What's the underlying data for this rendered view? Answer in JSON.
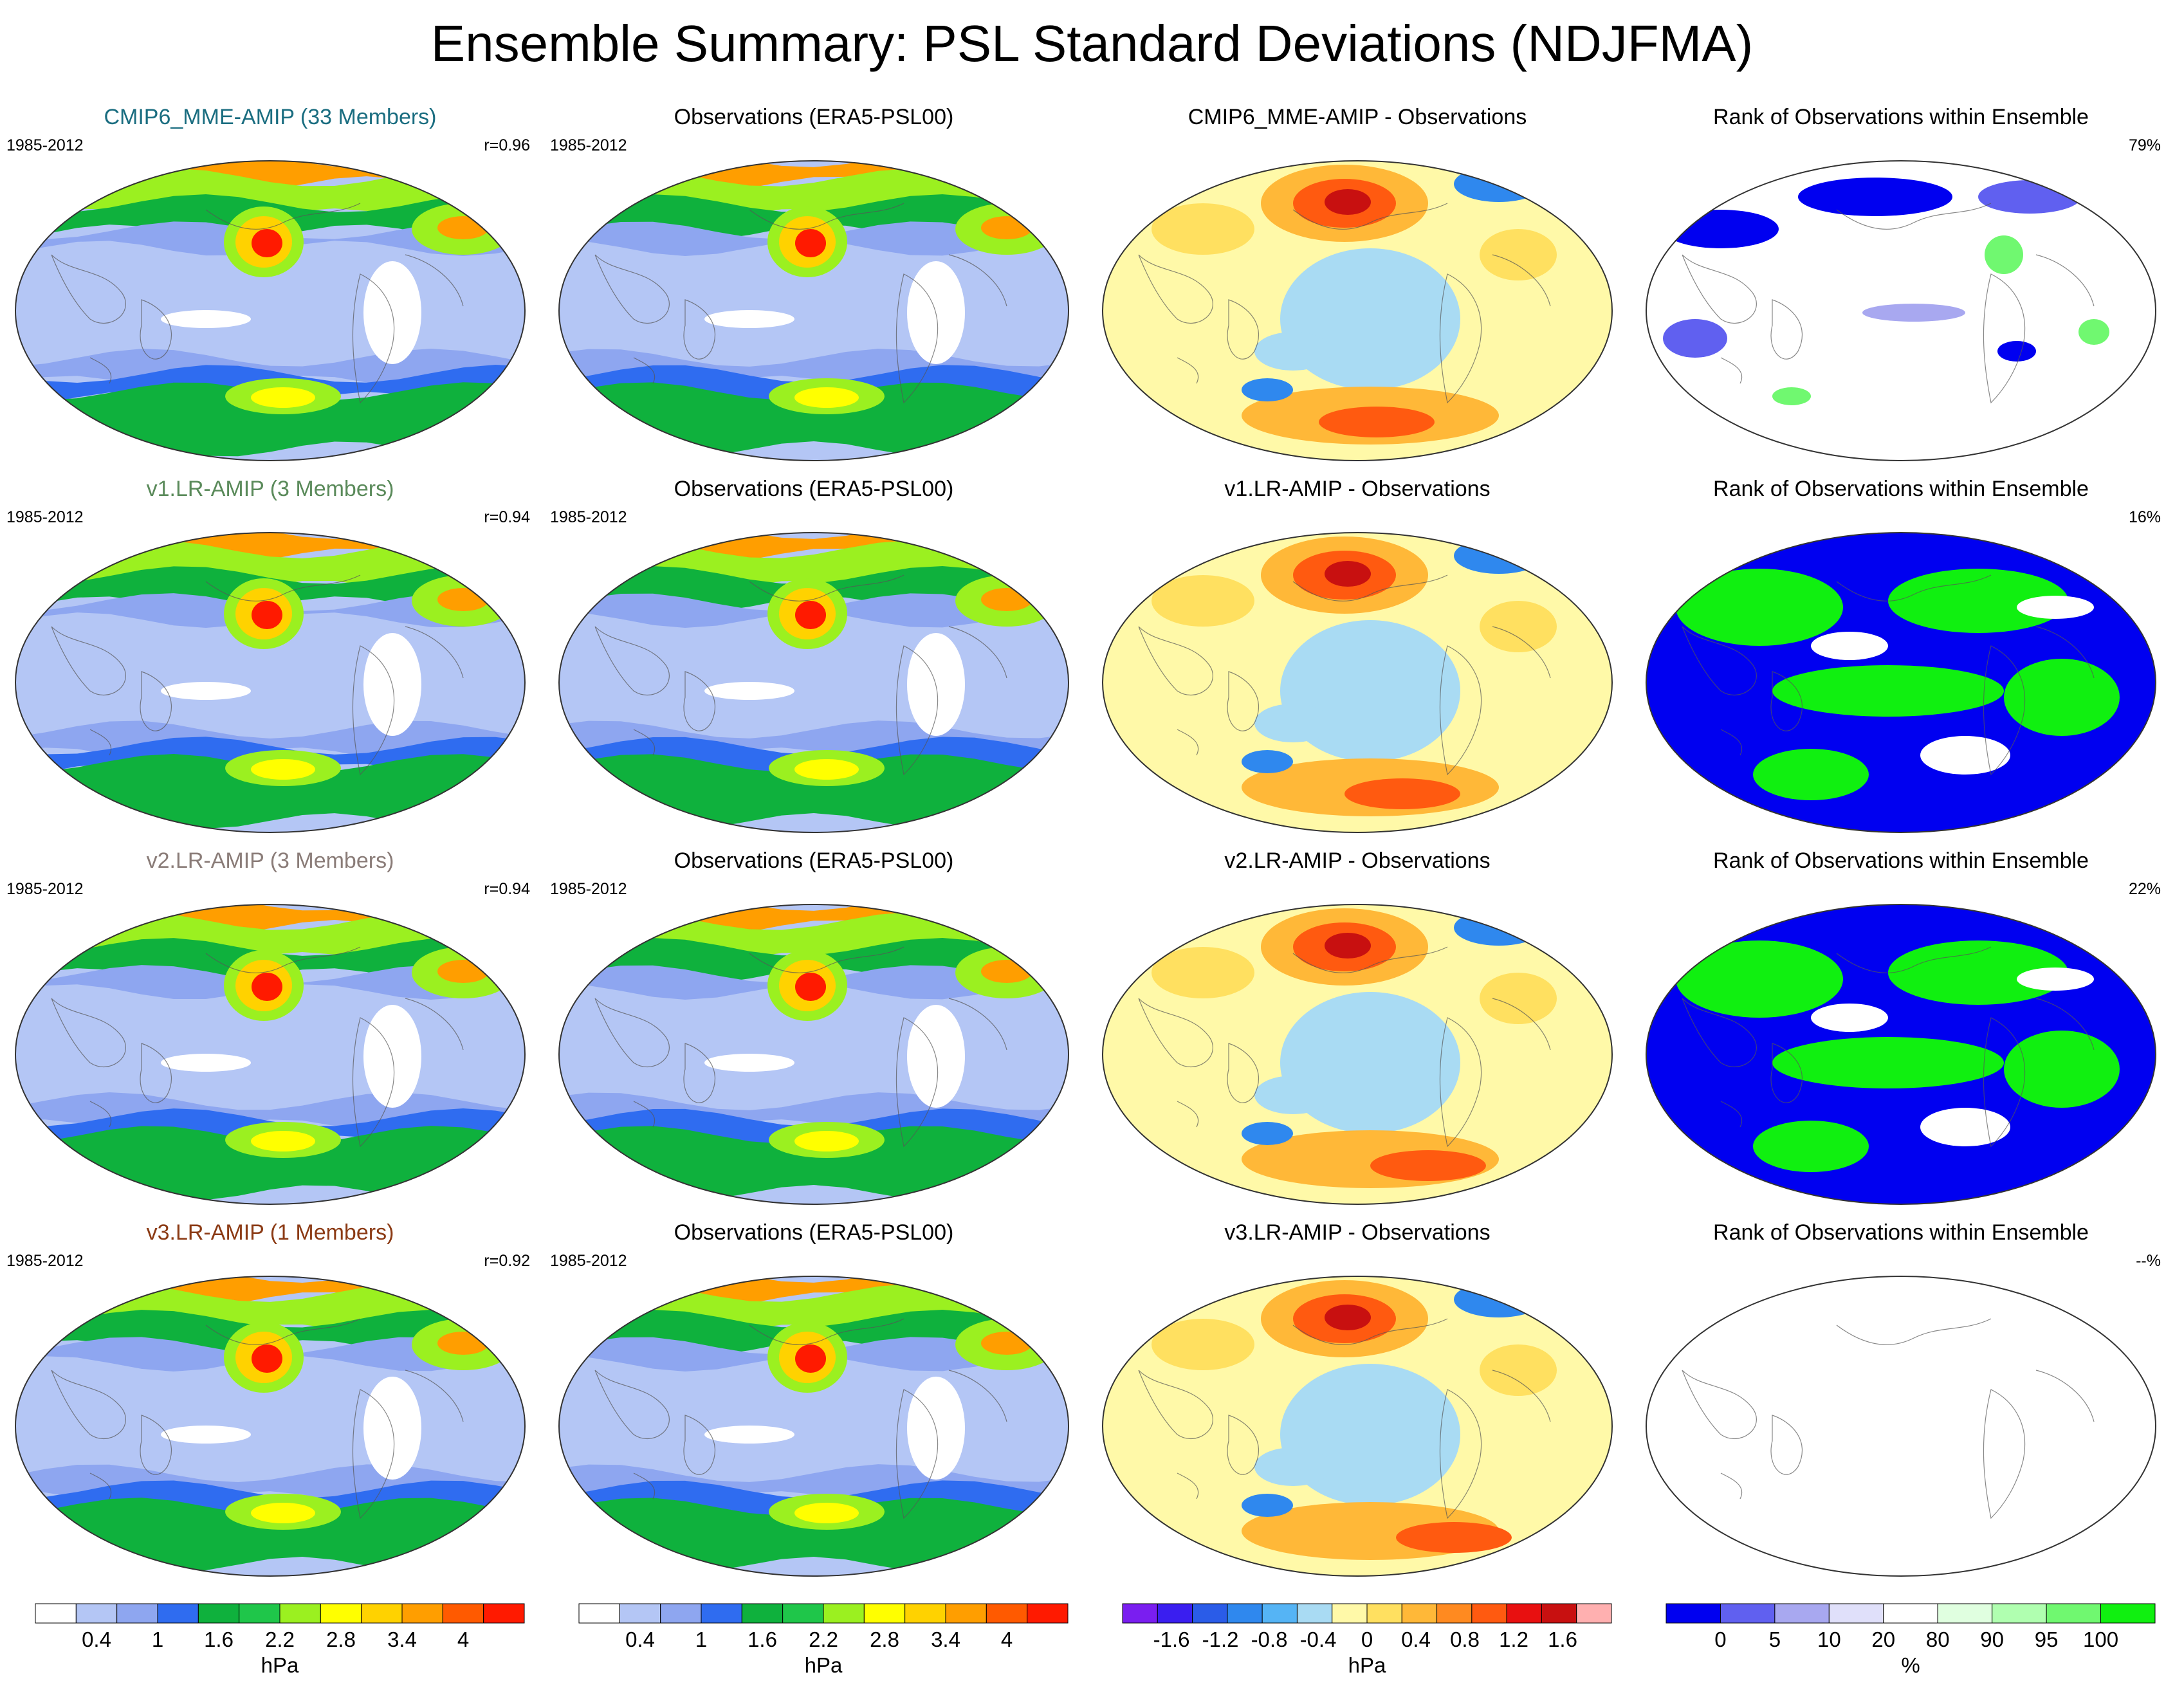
{
  "title": "Ensemble Summary: PSL Standard Deviations (NDJFMA)",
  "colors": {
    "title_model": [
      "#1a6d80",
      "#5a8a5a",
      "#8a7c78",
      "#8b3a14"
    ],
    "sd_palette": [
      "#ffffff",
      "#b4c6f5",
      "#8ea6f0",
      "#2f6cf0",
      "#0fb13d",
      "#1fc64a",
      "#9bf020",
      "#ffff00",
      "#ffd200",
      "#ff9e00",
      "#ff5a00",
      "#ff1a00"
    ],
    "diff_palette": [
      "#7a1ef0",
      "#3a1ef0",
      "#2a5ce8",
      "#2f88ee",
      "#55b4f5",
      "#a9dbf3",
      "#fff9a8",
      "#ffe060",
      "#ffb838",
      "#ff8a20",
      "#ff5a10",
      "#e81010",
      "#c81010",
      "#ffb0b0"
    ],
    "rank_palette": [
      "#0000f0",
      "#6060f0",
      "#a8a8f0",
      "#e0e0fa",
      "#ffffff",
      "#e0ffe0",
      "#b0ffb0",
      "#70f870",
      "#10f010"
    ]
  },
  "rows": [
    {
      "model_title": "CMIP6_MME-AMIP (33 Members)",
      "period": "1985-2012",
      "corr": "r=0.96",
      "obs_title": "Observations (ERA5-PSL00)",
      "obs_period": "1985-2012",
      "diff_title": "CMIP6_MME-AMIP - Observations",
      "rank_title": "Rank of Observations within Ensemble",
      "rank_pct": "79%"
    },
    {
      "model_title": "v1.LR-AMIP (3 Members)",
      "period": "1985-2012",
      "corr": "r=0.94",
      "obs_title": "Observations (ERA5-PSL00)",
      "obs_period": "1985-2012",
      "diff_title": "v1.LR-AMIP - Observations",
      "rank_title": "Rank of Observations within Ensemble",
      "rank_pct": "16%"
    },
    {
      "model_title": "v2.LR-AMIP (3 Members)",
      "period": "1985-2012",
      "corr": "r=0.94",
      "obs_title": "Observations (ERA5-PSL00)",
      "obs_period": "1985-2012",
      "diff_title": "v2.LR-AMIP - Observations",
      "rank_title": "Rank of Observations within Ensemble",
      "rank_pct": "22%"
    },
    {
      "model_title": "v3.LR-AMIP (1 Members)",
      "period": "1985-2012",
      "corr": "r=0.92",
      "obs_title": "Observations (ERA5-PSL00)",
      "obs_period": "1985-2012",
      "diff_title": "v3.LR-AMIP - Observations",
      "rank_title": "Rank of Observations within Ensemble",
      "rank_pct": "--%"
    }
  ],
  "colorbars": {
    "sd_model": {
      "ticks": [
        "0.4",
        "1",
        "1.6",
        "2.2",
        "2.8",
        "3.4",
        "4"
      ],
      "unit": "hPa"
    },
    "sd_obs": {
      "ticks": [
        "0.4",
        "1",
        "1.6",
        "2.2",
        "2.8",
        "3.4",
        "4"
      ],
      "unit": "hPa"
    },
    "diff": {
      "ticks": [
        "-1.6",
        "-1.2",
        "-0.8",
        "-0.4",
        "0",
        "0.4",
        "0.8",
        "1.2",
        "1.6"
      ],
      "unit": "hPa"
    },
    "rank": {
      "ticks": [
        "0",
        "5",
        "10",
        "20",
        "80",
        "90",
        "95",
        "100"
      ],
      "unit": "%"
    }
  }
}
